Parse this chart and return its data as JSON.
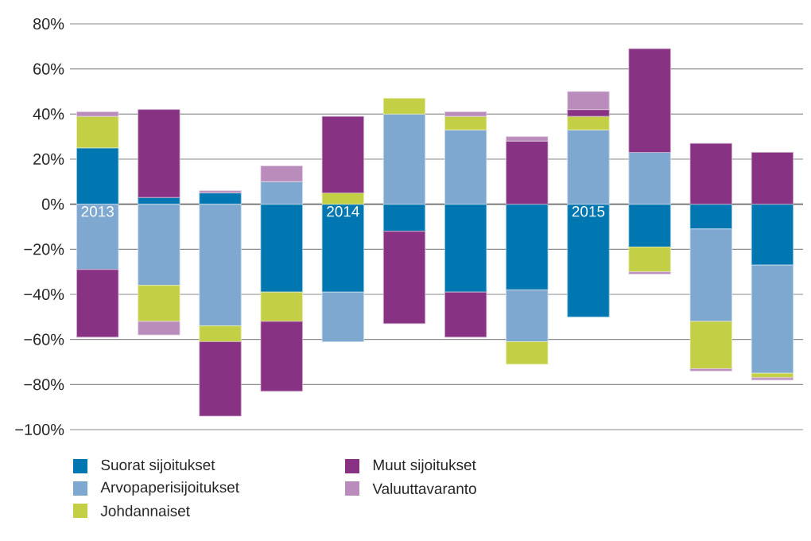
{
  "chart_data": {
    "type": "bar",
    "stacked": true,
    "categories": [
      "2013",
      null,
      null,
      null,
      "2014",
      null,
      null,
      null,
      "2015",
      null,
      null,
      null
    ],
    "series": [
      {
        "name": "Suorat sijoitukset",
        "color": "#0077b0",
        "values": [
          25,
          3,
          5,
          -39,
          -39,
          -12,
          -39,
          -38,
          -50,
          -19,
          -11,
          -27
        ]
      },
      {
        "name": "Arvopaperisijoitukset",
        "color": "#7fa8d0",
        "values": [
          -29,
          -36,
          -54,
          10,
          -22,
          40,
          33,
          -23,
          33,
          23,
          -41,
          -48
        ]
      },
      {
        "name": "Johdannaiset",
        "color": "#c3cf45",
        "values": [
          14,
          -16,
          -7,
          -13,
          5,
          7,
          6,
          -10,
          6,
          -11,
          -21,
          -2
        ]
      },
      {
        "name": "Muut sijoitukset",
        "color": "#873283",
        "values": [
          -30,
          39,
          -33,
          -31,
          34,
          -41,
          -20,
          28,
          3,
          46,
          27,
          23
        ]
      },
      {
        "name": "Valuuttavaranto",
        "color": "#b98cbc",
        "values": [
          2,
          -6,
          1,
          7,
          null,
          null,
          2,
          2,
          8,
          -1,
          -1,
          -1
        ]
      }
    ],
    "ylim": [
      -100,
      80
    ],
    "yticks": [
      {
        "value": -100,
        "label": "−100%"
      },
      {
        "value": -80,
        "label": "−80%"
      },
      {
        "value": -60,
        "label": "−60%"
      },
      {
        "value": -40,
        "label": "−40%"
      },
      {
        "value": -20,
        "label": "−20%"
      },
      {
        "value": 0,
        "label": "0%"
      },
      {
        "value": 20,
        "label": "20%"
      },
      {
        "value": 40,
        "label": "40%"
      },
      {
        "value": 60,
        "label": "60%"
      },
      {
        "value": 80,
        "label": "80%"
      }
    ],
    "grid": "y",
    "legend": "bottom"
  }
}
